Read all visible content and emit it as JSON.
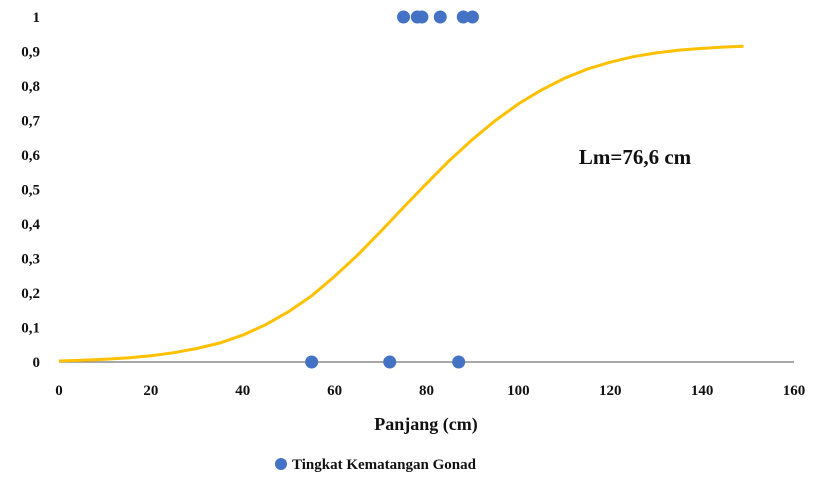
{
  "chart_data": {
    "type": "scatter",
    "xlabel": "Panjang (cm)",
    "ylabel": "",
    "xlim": [
      0,
      160
    ],
    "ylim": [
      0,
      1
    ],
    "x_ticks": [
      "0",
      "20",
      "40",
      "60",
      "80",
      "100",
      "120",
      "140",
      "160"
    ],
    "y_ticks": [
      "0",
      "0,1",
      "0,2",
      "0,3",
      "0,4",
      "0,5",
      "0,6",
      "0,7",
      "0,8",
      "0,9",
      "1"
    ],
    "grid": false,
    "legend_position": "bottom",
    "annotation": "Lm=76,6 cm",
    "series": [
      {
        "name": "Tingkat Kematangan Gonad",
        "kind": "scatter",
        "color": "#4472C4",
        "points": [
          {
            "x": 55,
            "y": 0
          },
          {
            "x": 72,
            "y": 0
          },
          {
            "x": 87,
            "y": 0
          },
          {
            "x": 75,
            "y": 1
          },
          {
            "x": 78,
            "y": 1
          },
          {
            "x": 79,
            "y": 1
          },
          {
            "x": 83,
            "y": 1
          },
          {
            "x": 88,
            "y": 1
          },
          {
            "x": 90,
            "y": 1
          }
        ]
      },
      {
        "kind": "line",
        "color": "#FFC000",
        "x": [
          0,
          5,
          10,
          15,
          20,
          25,
          30,
          35,
          40,
          45,
          50,
          55,
          60,
          65,
          70,
          75,
          80,
          85,
          90,
          95,
          100,
          105,
          110,
          115,
          120,
          125,
          130,
          135,
          140,
          145,
          149
        ],
        "y": [
          0.003,
          0.005,
          0.008,
          0.012,
          0.018,
          0.027,
          0.039,
          0.055,
          0.078,
          0.108,
          0.146,
          0.192,
          0.248,
          0.31,
          0.378,
          0.448,
          0.517,
          0.584,
          0.645,
          0.7,
          0.748,
          0.788,
          0.822,
          0.849,
          0.869,
          0.885,
          0.896,
          0.904,
          0.909,
          0.913,
          0.915
        ]
      }
    ]
  }
}
